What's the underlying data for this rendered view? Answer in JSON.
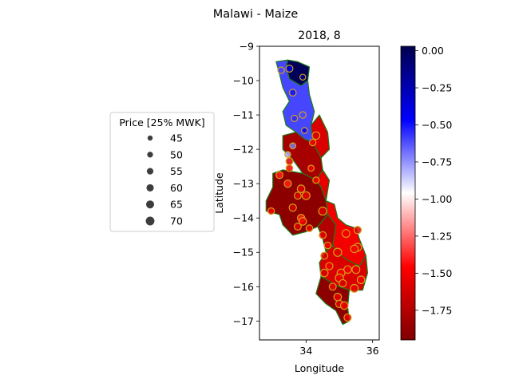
{
  "figure": {
    "suptitle": "Malawi - Maize",
    "title": "2018, 8",
    "xlabel": "Longitude",
    "ylabel": "Latitude"
  },
  "legend": {
    "title": "Price [25% MWK]",
    "entries": [
      {
        "label": "45",
        "value": 45
      },
      {
        "label": "50",
        "value": 50
      },
      {
        "label": "55",
        "value": 55
      },
      {
        "label": "60",
        "value": 60
      },
      {
        "label": "65",
        "value": 65
      },
      {
        "label": "70",
        "value": 70
      }
    ]
  },
  "colorbar": {
    "range": [
      -1.95,
      0.03
    ],
    "ticks": [
      {
        "label": "0.00",
        "value": 0.0
      },
      {
        "label": "−0.25",
        "value": -0.25
      },
      {
        "label": "−0.50",
        "value": -0.5
      },
      {
        "label": "−0.75",
        "value": -0.75
      },
      {
        "label": "−1.00",
        "value": -1.0
      },
      {
        "label": "−1.25",
        "value": -1.25
      },
      {
        "label": "−1.50",
        "value": -1.5
      },
      {
        "label": "−1.75",
        "value": -1.75
      }
    ],
    "colormap": "seismic_r"
  },
  "chart_data": {
    "type": "scatter",
    "xlim": [
      32.6,
      36.2
    ],
    "ylim": [
      -17.55,
      -9.0
    ],
    "xticks": [
      {
        "label": "34",
        "value": 34
      },
      {
        "label": "36",
        "value": 36
      }
    ],
    "yticks": [
      {
        "label": "−9",
        "value": -9
      },
      {
        "label": "−10",
        "value": -10
      },
      {
        "label": "−11",
        "value": -11
      },
      {
        "label": "−12",
        "value": -12
      },
      {
        "label": "−13",
        "value": -13
      },
      {
        "label": "−14",
        "value": -14
      },
      {
        "label": "−15",
        "value": -15
      },
      {
        "label": "−16",
        "value": -16
      },
      {
        "label": "−17",
        "value": -17
      }
    ],
    "grid": false,
    "marker_edge_color": "#d4a017",
    "region_edge_color": "#1a7a1a",
    "regions": [
      {
        "v": 0.0,
        "pts": [
          [
            33.45,
            -9.4
          ],
          [
            33.75,
            -9.45
          ],
          [
            34.1,
            -9.6
          ],
          [
            34.05,
            -10.0
          ],
          [
            33.85,
            -10.15
          ],
          [
            33.5,
            -9.95
          ],
          [
            33.4,
            -9.6
          ]
        ]
      },
      {
        "v": -0.6,
        "pts": [
          [
            33.1,
            -9.45
          ],
          [
            33.45,
            -9.4
          ],
          [
            33.4,
            -9.6
          ],
          [
            33.5,
            -9.95
          ],
          [
            33.85,
            -10.15
          ],
          [
            34.05,
            -10.0
          ],
          [
            34.1,
            -10.4
          ],
          [
            34.25,
            -10.9
          ],
          [
            34.15,
            -11.3
          ],
          [
            34.2,
            -11.8
          ],
          [
            33.95,
            -11.7
          ],
          [
            33.7,
            -11.5
          ],
          [
            33.4,
            -11.3
          ],
          [
            33.3,
            -10.9
          ],
          [
            33.5,
            -10.6
          ],
          [
            33.3,
            -10.2
          ],
          [
            33.2,
            -9.8
          ]
        ]
      },
      {
        "v": -1.6,
        "pts": [
          [
            34.15,
            -11.3
          ],
          [
            34.4,
            -11.0
          ],
          [
            34.65,
            -11.5
          ],
          [
            34.7,
            -12.0
          ],
          [
            34.45,
            -12.25
          ],
          [
            34.2,
            -11.8
          ]
        ]
      },
      {
        "v": -1.8,
        "pts": [
          [
            33.3,
            -11.6
          ],
          [
            33.7,
            -11.5
          ],
          [
            33.95,
            -11.7
          ],
          [
            34.2,
            -11.8
          ],
          [
            34.45,
            -12.25
          ],
          [
            34.5,
            -12.6
          ],
          [
            34.3,
            -12.9
          ],
          [
            33.9,
            -12.7
          ],
          [
            33.6,
            -12.3
          ],
          [
            33.3,
            -12.0
          ]
        ]
      },
      {
        "v": -1.9,
        "pts": [
          [
            33.0,
            -12.7
          ],
          [
            33.3,
            -12.6
          ],
          [
            33.9,
            -12.7
          ],
          [
            34.3,
            -12.9
          ],
          [
            34.45,
            -13.1
          ],
          [
            34.6,
            -13.5
          ],
          [
            34.65,
            -13.9
          ],
          [
            34.35,
            -14.25
          ],
          [
            34.0,
            -14.4
          ],
          [
            33.6,
            -14.5
          ],
          [
            33.3,
            -14.2
          ],
          [
            33.2,
            -13.9
          ],
          [
            32.8,
            -13.8
          ],
          [
            32.8,
            -13.5
          ],
          [
            33.0,
            -13.1
          ]
        ]
      },
      {
        "v": -1.55,
        "pts": [
          [
            34.3,
            -12.9
          ],
          [
            34.5,
            -12.6
          ],
          [
            34.7,
            -12.9
          ],
          [
            34.6,
            -13.5
          ],
          [
            34.45,
            -13.1
          ]
        ]
      },
      {
        "v": -1.75,
        "pts": [
          [
            34.35,
            -14.25
          ],
          [
            34.65,
            -13.9
          ],
          [
            34.9,
            -14.2
          ],
          [
            34.8,
            -14.8
          ],
          [
            34.6,
            -15.0
          ],
          [
            34.5,
            -14.6
          ]
        ]
      },
      {
        "v": -1.5,
        "pts": [
          [
            34.6,
            -13.5
          ],
          [
            34.85,
            -13.6
          ],
          [
            34.95,
            -14.0
          ],
          [
            35.2,
            -14.2
          ],
          [
            35.5,
            -14.3
          ],
          [
            35.6,
            -14.6
          ],
          [
            35.8,
            -15.1
          ],
          [
            35.6,
            -15.4
          ],
          [
            35.2,
            -15.2
          ],
          [
            34.95,
            -15.0
          ],
          [
            34.8,
            -14.8
          ],
          [
            34.9,
            -14.2
          ],
          [
            34.65,
            -13.9
          ]
        ]
      },
      {
        "v": -1.6,
        "pts": [
          [
            34.6,
            -15.0
          ],
          [
            34.8,
            -14.8
          ],
          [
            34.95,
            -15.0
          ],
          [
            35.2,
            -15.2
          ],
          [
            35.6,
            -15.4
          ],
          [
            35.8,
            -15.1
          ],
          [
            35.85,
            -15.6
          ],
          [
            35.7,
            -16.1
          ],
          [
            35.3,
            -16.1
          ],
          [
            35.0,
            -16.0
          ],
          [
            34.8,
            -15.9
          ],
          [
            34.45,
            -15.7
          ],
          [
            34.4,
            -15.3
          ]
        ]
      },
      {
        "v": -1.9,
        "pts": [
          [
            34.45,
            -15.7
          ],
          [
            34.8,
            -15.9
          ],
          [
            35.0,
            -16.0
          ],
          [
            35.3,
            -16.1
          ],
          [
            35.25,
            -16.6
          ],
          [
            35.3,
            -17.0
          ],
          [
            35.1,
            -17.1
          ],
          [
            34.9,
            -16.7
          ],
          [
            34.6,
            -16.5
          ],
          [
            34.3,
            -16.2
          ]
        ]
      }
    ],
    "points": [
      {
        "x": 33.25,
        "y": -9.7,
        "v": -0.6,
        "size": 55
      },
      {
        "x": 33.5,
        "y": -9.65,
        "v": -0.4,
        "size": 58
      },
      {
        "x": 33.9,
        "y": -9.9,
        "v": -0.15,
        "size": 50
      },
      {
        "x": 33.6,
        "y": -10.35,
        "v": -0.5,
        "size": 56
      },
      {
        "x": 33.9,
        "y": -11.0,
        "v": -0.6,
        "size": 55
      },
      {
        "x": 33.65,
        "y": -11.1,
        "v": -0.55,
        "size": 53
      },
      {
        "x": 33.95,
        "y": -11.45,
        "v": -0.45,
        "size": 50
      },
      {
        "x": 34.3,
        "y": -11.6,
        "v": -1.6,
        "size": 62
      },
      {
        "x": 34.2,
        "y": -11.8,
        "v": -1.5,
        "size": 55
      },
      {
        "x": 33.6,
        "y": -11.9,
        "v": -0.7,
        "size": 52
      },
      {
        "x": 33.45,
        "y": -12.15,
        "v": -0.8,
        "size": 50
      },
      {
        "x": 33.5,
        "y": -12.35,
        "v": -1.6,
        "size": 58
      },
      {
        "x": 33.5,
        "y": -12.55,
        "v": -1.5,
        "size": 56
      },
      {
        "x": 34.15,
        "y": -12.55,
        "v": -1.5,
        "size": 52
      },
      {
        "x": 33.2,
        "y": -12.75,
        "v": -1.4,
        "size": 58
      },
      {
        "x": 34.3,
        "y": -12.9,
        "v": -1.5,
        "size": 54
      },
      {
        "x": 33.45,
        "y": -13.0,
        "v": -1.4,
        "size": 60
      },
      {
        "x": 33.85,
        "y": -13.15,
        "v": -1.6,
        "size": 62
      },
      {
        "x": 34.0,
        "y": -13.35,
        "v": -1.55,
        "size": 64
      },
      {
        "x": 33.75,
        "y": -13.35,
        "v": -1.6,
        "size": 58
      },
      {
        "x": 33.6,
        "y": -13.7,
        "v": -1.65,
        "size": 60
      },
      {
        "x": 32.95,
        "y": -13.8,
        "v": -1.5,
        "size": 55
      },
      {
        "x": 34.5,
        "y": -13.8,
        "v": -1.6,
        "size": 66
      },
      {
        "x": 33.85,
        "y": -14.0,
        "v": -1.4,
        "size": 60
      },
      {
        "x": 33.9,
        "y": -14.1,
        "v": -1.5,
        "size": 62
      },
      {
        "x": 33.75,
        "y": -14.25,
        "v": -1.6,
        "size": 58
      },
      {
        "x": 34.1,
        "y": -14.3,
        "v": -1.5,
        "size": 56
      },
      {
        "x": 35.2,
        "y": -14.45,
        "v": -1.5,
        "size": 64
      },
      {
        "x": 35.55,
        "y": -14.35,
        "v": -1.6,
        "size": 60
      },
      {
        "x": 34.5,
        "y": -14.5,
        "v": -1.55,
        "size": 58
      },
      {
        "x": 34.65,
        "y": -14.8,
        "v": -1.5,
        "size": 56
      },
      {
        "x": 35.55,
        "y": -14.85,
        "v": -1.6,
        "size": 64
      },
      {
        "x": 35.45,
        "y": -14.9,
        "v": -1.5,
        "size": 62
      },
      {
        "x": 34.55,
        "y": -15.1,
        "v": -1.6,
        "size": 58
      },
      {
        "x": 34.95,
        "y": -15.0,
        "v": -1.55,
        "size": 66
      },
      {
        "x": 34.7,
        "y": -15.4,
        "v": -1.5,
        "size": 60
      },
      {
        "x": 35.25,
        "y": -15.5,
        "v": -1.5,
        "size": 62
      },
      {
        "x": 35.5,
        "y": -15.5,
        "v": -1.55,
        "size": 64
      },
      {
        "x": 34.55,
        "y": -15.6,
        "v": -1.6,
        "size": 62
      },
      {
        "x": 35.05,
        "y": -15.6,
        "v": -1.5,
        "size": 64
      },
      {
        "x": 35.0,
        "y": -15.75,
        "v": -1.55,
        "size": 66
      },
      {
        "x": 35.65,
        "y": -15.8,
        "v": -1.5,
        "size": 62
      },
      {
        "x": 35.1,
        "y": -15.9,
        "v": -1.6,
        "size": 60
      },
      {
        "x": 35.45,
        "y": -16.05,
        "v": -1.55,
        "size": 64
      },
      {
        "x": 34.8,
        "y": -16.0,
        "v": -1.5,
        "size": 58
      },
      {
        "x": 34.95,
        "y": -16.3,
        "v": -1.55,
        "size": 62
      },
      {
        "x": 35.0,
        "y": -16.5,
        "v": -1.6,
        "size": 60
      },
      {
        "x": 35.15,
        "y": -16.55,
        "v": -1.5,
        "size": 62
      },
      {
        "x": 35.25,
        "y": -16.9,
        "v": -1.55,
        "size": 60
      }
    ]
  }
}
